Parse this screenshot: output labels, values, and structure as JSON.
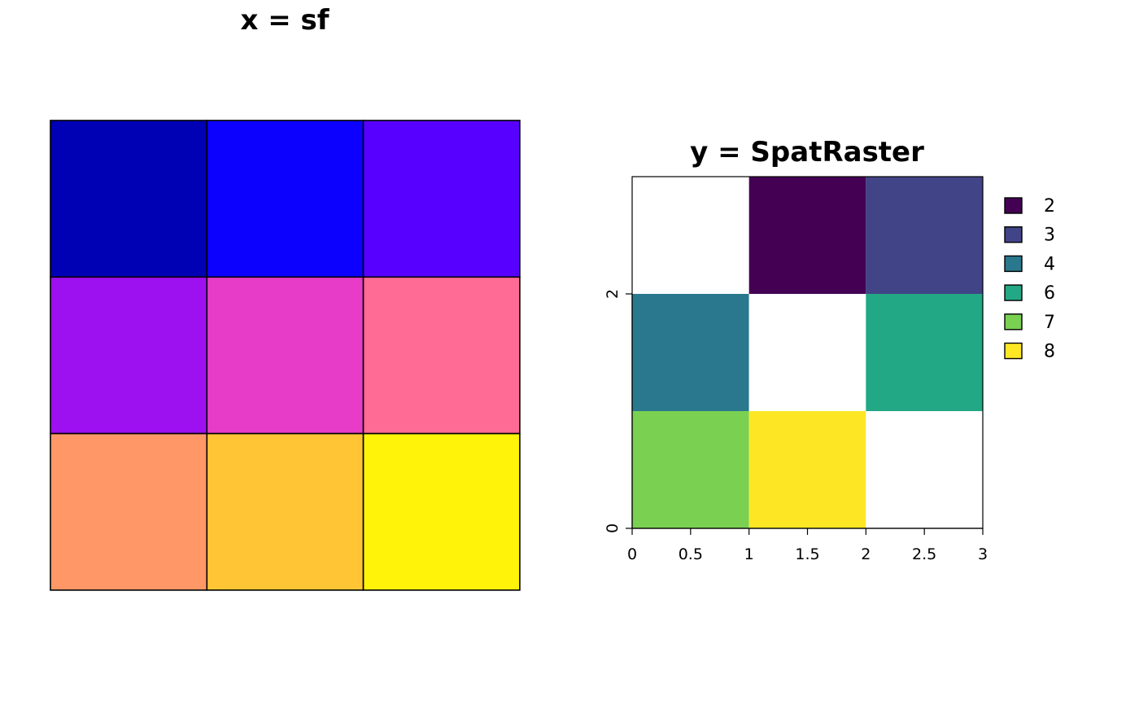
{
  "chart_data": [
    {
      "type": "heatmap",
      "title": "x = sf",
      "grid": {
        "rows": 3,
        "cols": 3
      },
      "cells": [
        {
          "row": 1,
          "col": 1,
          "color": "#0000b5"
        },
        {
          "row": 1,
          "col": 2,
          "color": "#0c00ff"
        },
        {
          "row": 1,
          "col": 3,
          "color": "#5800ff"
        },
        {
          "row": 2,
          "col": 1,
          "color": "#9d10f0"
        },
        {
          "row": 2,
          "col": 2,
          "color": "#e63cc8"
        },
        {
          "row": 2,
          "col": 3,
          "color": "#ff6b94"
        },
        {
          "row": 3,
          "col": 1,
          "color": "#ff9866"
        },
        {
          "row": 3,
          "col": 2,
          "color": "#ffc535"
        },
        {
          "row": 3,
          "col": 3,
          "color": "#fff30a"
        }
      ],
      "axes": "none"
    },
    {
      "type": "heatmap",
      "title": "y = SpatRaster",
      "xlim": [
        0,
        3
      ],
      "ylim": [
        0,
        3
      ],
      "x_ticks": [
        "0",
        "0.5",
        "1",
        "1.5",
        "2",
        "2.5",
        "3"
      ],
      "x_tick_values": [
        0,
        0.5,
        1,
        1.5,
        2,
        2.5,
        3
      ],
      "y_ticks": [
        "0",
        "2"
      ],
      "y_tick_values": [
        0,
        2
      ],
      "cells": [
        {
          "x": [
            0,
            1
          ],
          "y": [
            2,
            3
          ],
          "value": null
        },
        {
          "x": [
            1,
            2
          ],
          "y": [
            2,
            3
          ],
          "value": 2
        },
        {
          "x": [
            2,
            3
          ],
          "y": [
            2,
            3
          ],
          "value": 3
        },
        {
          "x": [
            0,
            1
          ],
          "y": [
            1,
            2
          ],
          "value": 4
        },
        {
          "x": [
            1,
            2
          ],
          "y": [
            1,
            2
          ],
          "value": null
        },
        {
          "x": [
            2,
            3
          ],
          "y": [
            1,
            2
          ],
          "value": 6
        },
        {
          "x": [
            0,
            1
          ],
          "y": [
            0,
            1
          ],
          "value": 7
        },
        {
          "x": [
            1,
            2
          ],
          "y": [
            0,
            1
          ],
          "value": 8
        },
        {
          "x": [
            2,
            3
          ],
          "y": [
            0,
            1
          ],
          "value": null
        }
      ],
      "legend": {
        "position": "right",
        "entries": [
          {
            "label": "2",
            "value": 2,
            "color": "#440154"
          },
          {
            "label": "3",
            "value": 3,
            "color": "#414487"
          },
          {
            "label": "4",
            "value": 4,
            "color": "#2a788e"
          },
          {
            "label": "6",
            "value": 6,
            "color": "#22a884"
          },
          {
            "label": "7",
            "value": 7,
            "color": "#7ad151"
          },
          {
            "label": "8",
            "value": 8,
            "color": "#fde725"
          }
        ]
      }
    }
  ]
}
